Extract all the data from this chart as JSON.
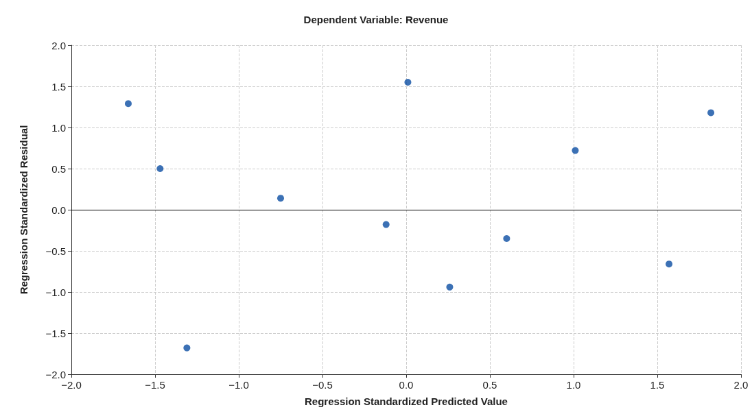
{
  "chart_data": {
    "type": "scatter",
    "title": "Dependent Variable: Revenue",
    "xlabel": "Regression Standardized Predicted Value",
    "ylabel": "Regression Standardized Residual",
    "x": [
      -1.66,
      -1.47,
      -1.31,
      -0.75,
      -0.12,
      0.01,
      0.26,
      0.6,
      1.01,
      1.57,
      1.82
    ],
    "values": [
      1.29,
      0.5,
      -1.68,
      0.14,
      -0.18,
      1.55,
      -0.94,
      -0.35,
      0.72,
      -0.66,
      1.18
    ],
    "color": "#0b4ea2",
    "marker": "circle",
    "xlim": [
      -2,
      2
    ],
    "xticks": [
      {
        "value": -2,
        "label": "−2.0"
      },
      {
        "value": -1.5,
        "label": "−1.5"
      },
      {
        "value": -1,
        "label": "−1.0"
      },
      {
        "value": -0.5,
        "label": "−0.5"
      },
      {
        "value": 0,
        "label": "0.0"
      },
      {
        "value": 0.5,
        "label": "0.5"
      },
      {
        "value": 1,
        "label": "1.0"
      },
      {
        "value": 1.5,
        "label": "1.5"
      },
      {
        "value": 2,
        "label": "2.0"
      }
    ],
    "ylim": [
      -2,
      2
    ],
    "yticks": [
      {
        "value": -2,
        "label": "−2.0"
      },
      {
        "value": -1.5,
        "label": "−1.5"
      },
      {
        "value": -1,
        "label": "−1.0"
      },
      {
        "value": -0.5,
        "label": "−0.5"
      },
      {
        "value": 0,
        "label": "0.0"
      },
      {
        "value": 0.5,
        "label": "0.5"
      },
      {
        "value": 1,
        "label": "1.0"
      },
      {
        "value": 1.5,
        "label": "1.5"
      },
      {
        "value": 2,
        "label": "2.0"
      }
    ],
    "grid": true,
    "ref_lines": [
      {
        "axis": "y",
        "value": 0,
        "color": "#000000",
        "line_style": "solid"
      }
    ]
  }
}
